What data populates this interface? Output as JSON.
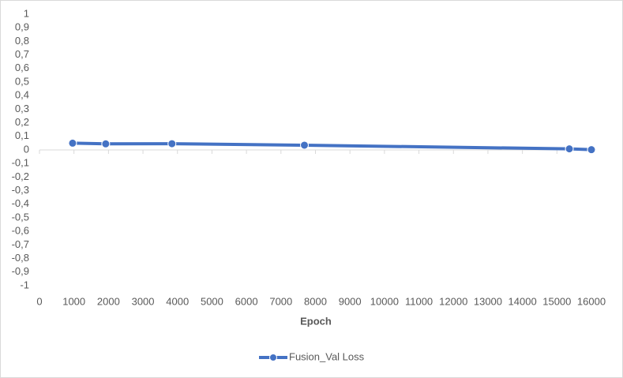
{
  "chart_data": {
    "type": "line",
    "x_label": "Epoch",
    "x": [
      960,
      1920,
      3840,
      7680,
      15360,
      16000
    ],
    "series": [
      {
        "name": "Fusion_Val Loss",
        "color": "#4472c4",
        "values": [
          0.05,
          0.045,
          0.046,
          0.035,
          0.008,
          0.002
        ]
      }
    ],
    "xlim": [
      0,
      16000
    ],
    "xticks": [
      0,
      1000,
      2000,
      3000,
      4000,
      5000,
      6000,
      7000,
      8000,
      9000,
      10000,
      11000,
      12000,
      13000,
      14000,
      15000,
      16000
    ],
    "ylim": [
      -1,
      1
    ],
    "yticks": [
      {
        "value": -1,
        "label": "-1"
      },
      {
        "value": -0.9,
        "label": "-0,9"
      },
      {
        "value": -0.8,
        "label": "-0,8"
      },
      {
        "value": -0.7,
        "label": "-0,7"
      },
      {
        "value": -0.6,
        "label": "-0,6"
      },
      {
        "value": -0.5,
        "label": "-0,5"
      },
      {
        "value": -0.4,
        "label": "-0,4"
      },
      {
        "value": -0.3,
        "label": "-0,3"
      },
      {
        "value": -0.2,
        "label": "-0,2"
      },
      {
        "value": -0.1,
        "label": "-0,1"
      },
      0,
      {
        "value": 0.1,
        "label": "0,1"
      },
      {
        "value": 0.2,
        "label": "0,2"
      },
      {
        "value": 0.3,
        "label": "0,3"
      },
      {
        "value": 0.4,
        "label": "0,4"
      },
      {
        "value": 0.5,
        "label": "0,5"
      },
      {
        "value": 0.6,
        "label": "0,6"
      },
      {
        "value": 0.7,
        "label": "0,7"
      },
      {
        "value": 0.8,
        "label": "0,8"
      },
      {
        "value": 0.9,
        "label": "0,9"
      },
      1
    ],
    "legend": "bottom"
  }
}
